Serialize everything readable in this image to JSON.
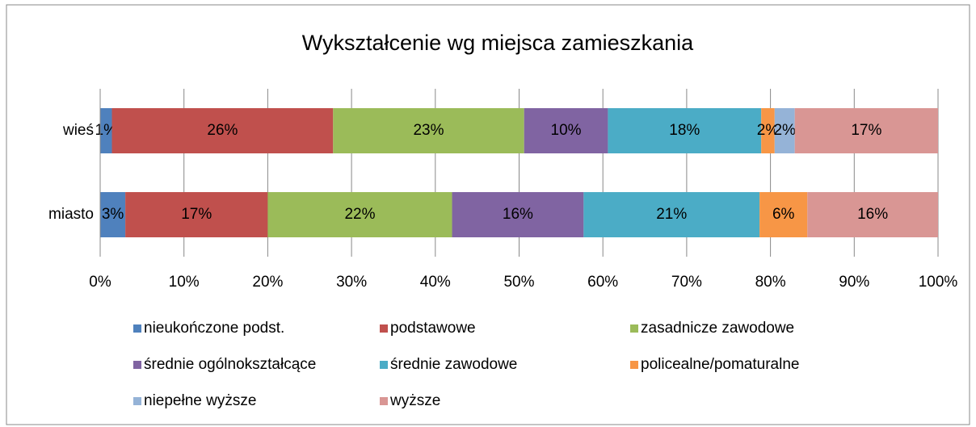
{
  "chart_data": {
    "type": "stacked_barh",
    "title": "Wykształcenie wg miejsca zamieszkania",
    "categories": [
      "wieś",
      "miasto"
    ],
    "series": [
      {
        "name": "nieukończone podst.",
        "color": "#4f81bd",
        "values": [
          1.4,
          3.0
        ],
        "value_labels": [
          "1%",
          "3%"
        ]
      },
      {
        "name": "podstawowe",
        "color": "#c0504d",
        "values": [
          26.4,
          17.0
        ],
        "value_labels": [
          "26%",
          "17%"
        ]
      },
      {
        "name": "zasadnicze zawodowe",
        "color": "#9bbb59",
        "values": [
          22.8,
          22.0
        ],
        "value_labels": [
          "23%",
          "22%"
        ]
      },
      {
        "name": "średnie ogólnokształcące",
        "color": "#8064a2",
        "values": [
          10.0,
          15.7
        ],
        "value_labels": [
          "10%",
          "16%"
        ]
      },
      {
        "name": "średnie zawodowe",
        "color": "#4bacc6",
        "values": [
          18.3,
          21.0
        ],
        "value_labels": [
          "18%",
          "21%"
        ]
      },
      {
        "name": "policealne/pomaturalne",
        "color": "#f79646",
        "values": [
          1.6,
          5.7
        ],
        "value_labels": [
          "2%",
          "6%"
        ]
      },
      {
        "name": "niepełne wyższe",
        "color": "#95b3d7",
        "values": [
          2.4,
          0
        ],
        "value_labels": [
          "2%",
          null
        ]
      },
      {
        "name": "wyższe",
        "color": "#d99694",
        "values": [
          17.1,
          15.6
        ],
        "value_labels": [
          "17%",
          "16%"
        ]
      }
    ],
    "xlim": [
      0,
      100
    ],
    "xticks": [
      {
        "value": 0,
        "label": "0%"
      },
      {
        "value": 10,
        "label": "10%"
      },
      {
        "value": 20,
        "label": "20%"
      },
      {
        "value": 30,
        "label": "30%"
      },
      {
        "value": 40,
        "label": "40%"
      },
      {
        "value": 50,
        "label": "50%"
      },
      {
        "value": 60,
        "label": "60%"
      },
      {
        "value": 70,
        "label": "70%"
      },
      {
        "value": 80,
        "label": "80%"
      },
      {
        "value": 90,
        "label": "90%"
      },
      {
        "value": 100,
        "label": "100%"
      }
    ],
    "grid": true,
    "legend": "bottom"
  }
}
